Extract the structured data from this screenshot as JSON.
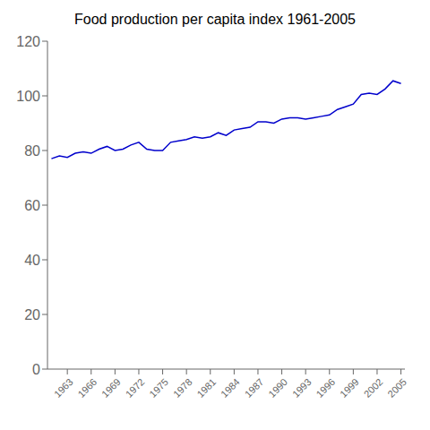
{
  "chart_data": {
    "type": "line",
    "title": "Food production per capita index 1961-2005",
    "x": [
      1961,
      1962,
      1963,
      1964,
      1965,
      1966,
      1967,
      1968,
      1969,
      1970,
      1971,
      1972,
      1973,
      1974,
      1975,
      1976,
      1977,
      1978,
      1979,
      1980,
      1981,
      1982,
      1983,
      1984,
      1985,
      1986,
      1987,
      1988,
      1989,
      1990,
      1991,
      1992,
      1993,
      1994,
      1995,
      1996,
      1997,
      1998,
      1999,
      2000,
      2001,
      2002,
      2003,
      2004,
      2005
    ],
    "values": [
      77.0,
      78.0,
      77.5,
      79.0,
      79.5,
      79.0,
      80.5,
      81.5,
      80.0,
      80.5,
      82.0,
      83.0,
      80.5,
      80.0,
      80.0,
      83.0,
      83.5,
      84.0,
      85.0,
      84.5,
      85.0,
      86.5,
      85.5,
      87.5,
      88.0,
      88.5,
      90.5,
      90.5,
      90.0,
      91.5,
      92.0,
      92.0,
      91.5,
      92.0,
      92.5,
      93.0,
      95.0,
      96.0,
      97.0,
      100.5,
      101.0,
      100.5,
      102.5,
      105.5,
      104.5
    ],
    "color": "#0000CC",
    "xlim": [
      1960.5,
      2005.5
    ],
    "xticks": [
      1963,
      1966,
      1969,
      1972,
      1975,
      1978,
      1981,
      1984,
      1987,
      1990,
      1993,
      1996,
      1999,
      2002,
      2005
    ],
    "ylim": [
      0,
      120
    ],
    "yticks": [
      0,
      20,
      40,
      60,
      80,
      100,
      120
    ],
    "grid": false
  }
}
